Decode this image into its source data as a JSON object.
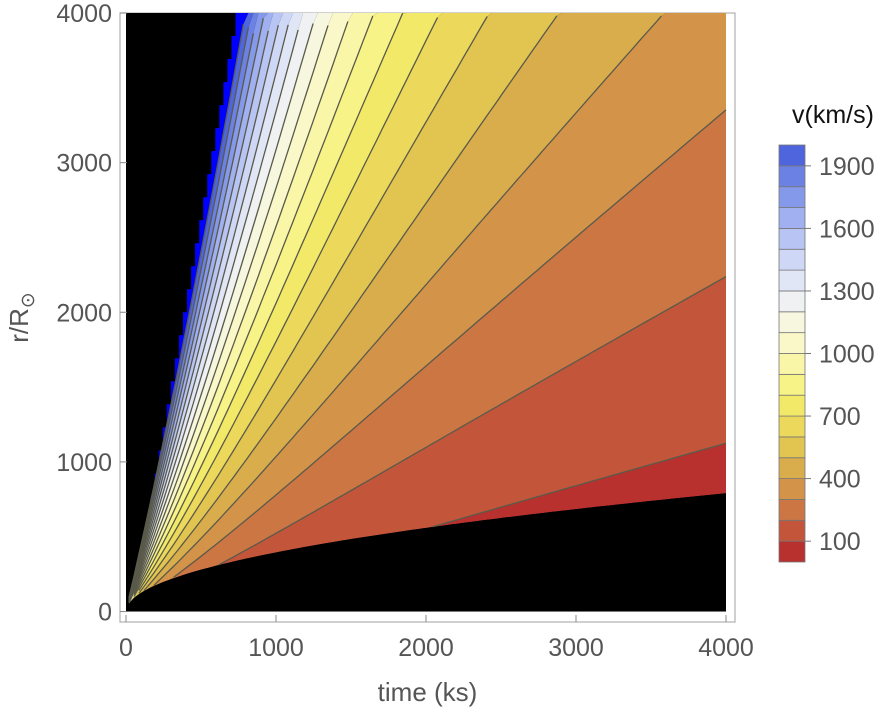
{
  "chart_data": {
    "type": "contour",
    "title": "",
    "xlabel": "time (ks)",
    "ylabel": "r/R",
    "ylabel_subscript_symbol": "⊙",
    "xlim": [
      -40,
      4060
    ],
    "ylim": [
      -70,
      4000
    ],
    "xticks": [
      "0",
      "1000",
      "2000",
      "3000",
      "4000"
    ],
    "yticks": [
      "0",
      "1000",
      "2000",
      "3000",
      "4000"
    ],
    "grid": false,
    "field": "v(km/s)",
    "level_step": 100,
    "levels": [
      0,
      100,
      200,
      300,
      400,
      500,
      600,
      700,
      800,
      900,
      1000,
      1100,
      1200,
      1300,
      1400,
      1500,
      1600,
      1700,
      1800,
      1900,
      2000
    ],
    "band_colors": [
      "#b8312e",
      "#c3563a",
      "#cc7644",
      "#d3944a",
      "#d9ad4c",
      "#e2c450",
      "#ecd85a",
      "#f3e968",
      "#f7f387",
      "#f9f6a8",
      "#faf8c8",
      "#f7f7e0",
      "#eff1f2",
      "#e1e6f7",
      "#cfd7f6",
      "#b8c4f4",
      "#a0b0f0",
      "#8599ea",
      "#6b81e4",
      "#4f65dd"
    ],
    "saturated_color": "#0000ff",
    "background_color": "#000000",
    "contour_line_color": "#5a5a4a",
    "lower_boundary_r_at_t4000": 790,
    "legend": {
      "title": "v(km/s)",
      "placement": "right",
      "labels": [
        "100",
        "400",
        "700",
        "1000",
        "1300",
        "1600",
        "1900"
      ]
    }
  }
}
